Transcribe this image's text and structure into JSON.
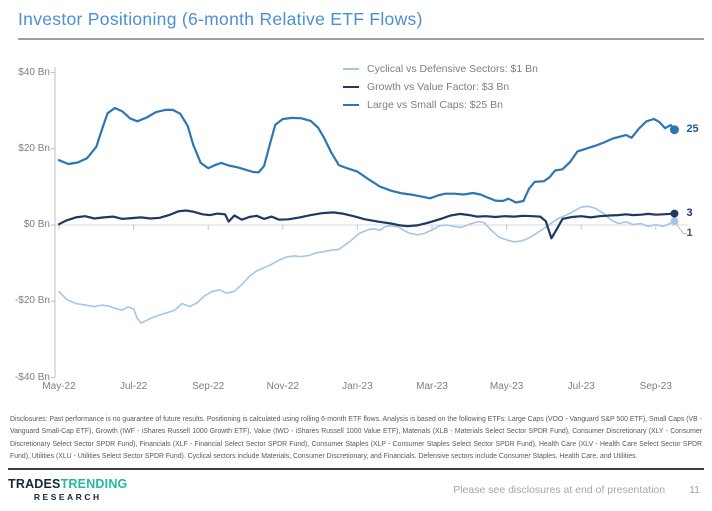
{
  "slide": {
    "title": "Investor Positioning (6-month Relative ETF Flows)",
    "disclosure": "Disclosures: Past performance is no guarantee of future results. Positioning is calculated using rolling 6-month ETF flows. Analysis is based on the following ETFs: Large Caps (VOO - Vanguard S&P 500 ETF), Small Caps (VB - Vanguard Small-Cap ETF), Growth (IWF - iShares Russell 1000 Growth ETF), Value (IWD - iShares Russell 1000 Value ETF), Materials (XLB - Materials Select Sector SPDR Fund), Consumer Discretionary (XLY - Consumer Discretionary Select Sector SPDR Fund), Financials (XLF - Financial Select Sector SPDR Fund), Consumer Staples (XLP - Consumer Staples Select Sector SPDR Fund), Health Care (XLV - Health Care Select Sector SPDR Fund), Utilities (XLU - Utilities Select Sector SPDR Fund). Cyclical sectors include Materials, Consumer Discretionary, and Financials. Defensive sectors include Consumer Staples, Health Care, and Utilities.",
    "footer_note": "Please see disclosures at end of presentation",
    "page_number": "11",
    "logo": {
      "line1_part1": "TRADES",
      "line1_part2": "TRENDING",
      "line2": "RESEARCH"
    }
  },
  "colors": {
    "title": "#4a90d8",
    "logo_dark": "#152a3e",
    "logo_teal": "#24b99f",
    "axis_line": "#bfbfbf",
    "zero_line": "#d9d9d9"
  },
  "chart_data": {
    "type": "line",
    "title": "Investor Positioning (6-month Relative ETF Flows)",
    "x_unit": "months since May-2022",
    "ylim": [
      -40,
      40
    ],
    "xlim_months": [
      0,
      16.5
    ],
    "grid": "zero-line-only",
    "legend_position": "top-right",
    "y_ticks": [
      {
        "label": "$40 Bn",
        "value": 40
      },
      {
        "label": "$20 Bn",
        "value": 20
      },
      {
        "label": "$0 Bn",
        "value": 0
      },
      {
        "label": "-$20 Bn",
        "value": -20
      },
      {
        "label": "-$40 Bn",
        "value": -40
      }
    ],
    "x_ticks": [
      {
        "label": "May-22",
        "month": 0
      },
      {
        "label": "Jul-22",
        "month": 2
      },
      {
        "label": "Sep-22",
        "month": 4
      },
      {
        "label": "Nov-22",
        "month": 6
      },
      {
        "label": "Jan-23",
        "month": 8
      },
      {
        "label": "Mar-23",
        "month": 10
      },
      {
        "label": "May-23",
        "month": 12
      },
      {
        "label": "Jul-23",
        "month": 14
      },
      {
        "label": "Sep-23",
        "month": 16
      }
    ],
    "series": [
      {
        "name": "Cyclical vs Defensive Sectors",
        "legend_label": "Cyclical vs Defensive Sectors:  $1 Bn",
        "color": "#a3c6e8",
        "stroke_width": 1.6,
        "marker_radius": 4,
        "end_value": 1,
        "end_label": "1",
        "end_label_color": "#44546a",
        "end_label_offset": 12,
        "leader": true,
        "points": [
          [
            0,
            -17.5
          ],
          [
            0.2,
            -19.5
          ],
          [
            0.45,
            -20.6
          ],
          [
            0.7,
            -21
          ],
          [
            0.95,
            -21.4
          ],
          [
            1.15,
            -21
          ],
          [
            1.35,
            -21.3
          ],
          [
            1.55,
            -22
          ],
          [
            1.7,
            -22.3
          ],
          [
            1.85,
            -21.5
          ],
          [
            2,
            -22
          ],
          [
            2.1,
            -24.5
          ],
          [
            2.2,
            -25.7
          ],
          [
            2.35,
            -25
          ],
          [
            2.5,
            -24.3
          ],
          [
            2.7,
            -23.6
          ],
          [
            2.9,
            -23
          ],
          [
            3.1,
            -22.4
          ],
          [
            3.3,
            -20.6
          ],
          [
            3.5,
            -21.4
          ],
          [
            3.7,
            -20.4
          ],
          [
            3.9,
            -18.6
          ],
          [
            4.1,
            -17.5
          ],
          [
            4.3,
            -17
          ],
          [
            4.5,
            -17.9
          ],
          [
            4.7,
            -17.4
          ],
          [
            4.9,
            -15.6
          ],
          [
            5.1,
            -13.5
          ],
          [
            5.3,
            -12
          ],
          [
            5.5,
            -11.2
          ],
          [
            5.7,
            -10.3
          ],
          [
            5.9,
            -9.2
          ],
          [
            6.1,
            -8.4
          ],
          [
            6.3,
            -8.1
          ],
          [
            6.5,
            -8.3
          ],
          [
            6.7,
            -8
          ],
          [
            6.9,
            -7.3
          ],
          [
            7.1,
            -7
          ],
          [
            7.3,
            -6.6
          ],
          [
            7.5,
            -6.4
          ],
          [
            7.7,
            -5
          ],
          [
            7.85,
            -3.9
          ],
          [
            8.05,
            -2.2
          ],
          [
            8.3,
            -1.2
          ],
          [
            8.45,
            -1
          ],
          [
            8.6,
            -1.4
          ],
          [
            8.75,
            -0.4
          ],
          [
            8.9,
            -0.2
          ],
          [
            9.1,
            -0.5
          ],
          [
            9.35,
            -2
          ],
          [
            9.6,
            -2.6
          ],
          [
            9.8,
            -2.2
          ],
          [
            10,
            -1.3
          ],
          [
            10.2,
            -0.2
          ],
          [
            10.4,
            0
          ],
          [
            10.6,
            -0.4
          ],
          [
            10.8,
            -0.6
          ],
          [
            11,
            0.2
          ],
          [
            11.25,
            0.9
          ],
          [
            11.4,
            0.6
          ],
          [
            11.6,
            -1.5
          ],
          [
            11.8,
            -3.2
          ],
          [
            12,
            -3.9
          ],
          [
            12.2,
            -4.4
          ],
          [
            12.4,
            -4.2
          ],
          [
            12.6,
            -3.4
          ],
          [
            12.8,
            -2.2
          ],
          [
            13,
            -0.9
          ],
          [
            13.2,
            0.5
          ],
          [
            13.4,
            1.8
          ],
          [
            13.6,
            2.6
          ],
          [
            13.8,
            3.6
          ],
          [
            14,
            4.7
          ],
          [
            14.2,
            4.9
          ],
          [
            14.4,
            4.3
          ],
          [
            14.6,
            3
          ],
          [
            14.8,
            1.3
          ],
          [
            15,
            0.4
          ],
          [
            15.2,
            0.8
          ],
          [
            15.4,
            0.1
          ],
          [
            15.6,
            0.4
          ],
          [
            15.8,
            -0.4
          ],
          [
            16,
            0.1
          ],
          [
            16.2,
            -0.4
          ],
          [
            16.35,
            0.3
          ],
          [
            16.5,
            1
          ]
        ]
      },
      {
        "name": "Growth vs Value Factor",
        "legend_label": "Growth vs Value Factor:  $3 Bn",
        "color": "#1f3864",
        "stroke_width": 2.2,
        "marker_radius": 4,
        "end_value": 3,
        "end_label": "3",
        "end_label_color": "#1f3864",
        "end_label_offset": 0,
        "leader": false,
        "points": [
          [
            0,
            0.2
          ],
          [
            0.2,
            1.2
          ],
          [
            0.45,
            2
          ],
          [
            0.7,
            2.3
          ],
          [
            0.95,
            1.7
          ],
          [
            1.2,
            2
          ],
          [
            1.45,
            2.2
          ],
          [
            1.7,
            1.6
          ],
          [
            1.95,
            1.8
          ],
          [
            2.2,
            2
          ],
          [
            2.45,
            1.7
          ],
          [
            2.7,
            1.9
          ],
          [
            2.95,
            2.6
          ],
          [
            3.2,
            3.6
          ],
          [
            3.4,
            3.8
          ],
          [
            3.6,
            3.5
          ],
          [
            3.85,
            2.8
          ],
          [
            4.05,
            2.6
          ],
          [
            4.25,
            3
          ],
          [
            4.45,
            2.8
          ],
          [
            4.55,
            0.9
          ],
          [
            4.7,
            2.5
          ],
          [
            4.9,
            1.4
          ],
          [
            5.1,
            2.1
          ],
          [
            5.3,
            2.4
          ],
          [
            5.5,
            1.6
          ],
          [
            5.7,
            2.2
          ],
          [
            5.9,
            1.4
          ],
          [
            6.15,
            1.5
          ],
          [
            6.45,
            2
          ],
          [
            6.75,
            2.6
          ],
          [
            7.05,
            3.1
          ],
          [
            7.35,
            3.3
          ],
          [
            7.6,
            3
          ],
          [
            7.9,
            2.3
          ],
          [
            8.2,
            1.5
          ],
          [
            8.55,
            0.9
          ],
          [
            8.9,
            0.4
          ],
          [
            9.15,
            -0.1
          ],
          [
            9.35,
            -0.3
          ],
          [
            9.6,
            -0.1
          ],
          [
            9.9,
            0.6
          ],
          [
            10.2,
            1.5
          ],
          [
            10.5,
            2.5
          ],
          [
            10.75,
            2.9
          ],
          [
            11,
            2.6
          ],
          [
            11.2,
            2.2
          ],
          [
            11.45,
            2.3
          ],
          [
            11.7,
            2.1
          ],
          [
            11.95,
            2.3
          ],
          [
            12.2,
            2.2
          ],
          [
            12.45,
            2.4
          ],
          [
            12.7,
            2.3
          ],
          [
            12.9,
            2.2
          ],
          [
            13.05,
            1
          ],
          [
            13.2,
            -3.5
          ],
          [
            13.35,
            -1
          ],
          [
            13.5,
            1.6
          ],
          [
            13.75,
            2.1
          ],
          [
            14,
            2.3
          ],
          [
            14.25,
            2
          ],
          [
            14.5,
            2.3
          ],
          [
            14.75,
            2.5
          ],
          [
            15,
            2.6
          ],
          [
            15.2,
            2.8
          ],
          [
            15.4,
            2.6
          ],
          [
            15.6,
            2.7
          ],
          [
            15.8,
            2.9
          ],
          [
            16,
            2.7
          ],
          [
            16.2,
            2.8
          ],
          [
            16.5,
            3
          ]
        ]
      },
      {
        "name": "Large vs Small Caps",
        "legend_label": "Large vs Small Caps:  $25 Bn",
        "color": "#2e75b6",
        "stroke_width": 2.2,
        "marker_radius": 4.5,
        "end_value": 25,
        "end_label": "25",
        "end_label_color": "#1f5c99",
        "end_label_offset": 0,
        "leader": false,
        "points": [
          [
            0,
            17
          ],
          [
            0.25,
            16
          ],
          [
            0.5,
            16.4
          ],
          [
            0.75,
            17.5
          ],
          [
            1,
            20.5
          ],
          [
            1.15,
            25
          ],
          [
            1.3,
            29.3
          ],
          [
            1.5,
            30.7
          ],
          [
            1.7,
            29.8
          ],
          [
            1.9,
            28
          ],
          [
            2.1,
            27.2
          ],
          [
            2.35,
            28.2
          ],
          [
            2.6,
            29.6
          ],
          [
            2.85,
            30.2
          ],
          [
            3.05,
            30.2
          ],
          [
            3.25,
            29.2
          ],
          [
            3.45,
            26
          ],
          [
            3.6,
            21
          ],
          [
            3.8,
            16.3
          ],
          [
            4,
            14.9
          ],
          [
            4.2,
            15.8
          ],
          [
            4.35,
            16.3
          ],
          [
            4.55,
            15.6
          ],
          [
            4.8,
            15.1
          ],
          [
            5,
            14.5
          ],
          [
            5.2,
            13.9
          ],
          [
            5.35,
            13.8
          ],
          [
            5.5,
            15.5
          ],
          [
            5.65,
            21
          ],
          [
            5.8,
            26.3
          ],
          [
            6,
            27.8
          ],
          [
            6.25,
            28.1
          ],
          [
            6.5,
            28
          ],
          [
            6.75,
            27.3
          ],
          [
            6.95,
            25.5
          ],
          [
            7.1,
            23
          ],
          [
            7.3,
            19
          ],
          [
            7.5,
            15.7
          ],
          [
            7.75,
            14.8
          ],
          [
            8,
            14
          ],
          [
            8.3,
            12
          ],
          [
            8.6,
            10.1
          ],
          [
            8.9,
            9
          ],
          [
            9.2,
            8.3
          ],
          [
            9.5,
            7.9
          ],
          [
            9.75,
            7.4
          ],
          [
            9.95,
            7
          ],
          [
            10.15,
            7.7
          ],
          [
            10.35,
            8.2
          ],
          [
            10.6,
            8.2
          ],
          [
            10.85,
            8
          ],
          [
            11.1,
            8.4
          ],
          [
            11.3,
            8
          ],
          [
            11.5,
            7.2
          ],
          [
            11.7,
            6.4
          ],
          [
            11.9,
            6.3
          ],
          [
            12.05,
            6.9
          ],
          [
            12.25,
            5.9
          ],
          [
            12.45,
            6.3
          ],
          [
            12.6,
            9.5
          ],
          [
            12.75,
            11.3
          ],
          [
            13,
            11.5
          ],
          [
            13.15,
            12.5
          ],
          [
            13.3,
            14.3
          ],
          [
            13.5,
            14.6
          ],
          [
            13.7,
            16.5
          ],
          [
            13.9,
            19.3
          ],
          [
            14.1,
            19.9
          ],
          [
            14.35,
            20.7
          ],
          [
            14.6,
            21.6
          ],
          [
            14.85,
            22.7
          ],
          [
            15.05,
            23.2
          ],
          [
            15.2,
            23.6
          ],
          [
            15.35,
            22.9
          ],
          [
            15.55,
            25.3
          ],
          [
            15.75,
            27.2
          ],
          [
            15.95,
            27.8
          ],
          [
            16.1,
            27
          ],
          [
            16.25,
            25.4
          ],
          [
            16.4,
            26.2
          ],
          [
            16.5,
            25
          ]
        ]
      }
    ]
  }
}
